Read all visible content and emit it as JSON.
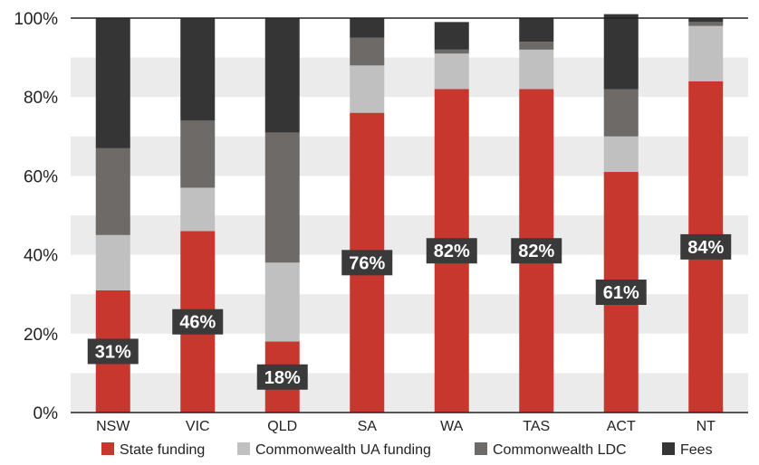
{
  "chart_data": {
    "type": "bar",
    "stacked": true,
    "percent_stacked": true,
    "categories": [
      "NSW",
      "VIC",
      "QLD",
      "SA",
      "WA",
      "TAS",
      "ACT",
      "NT"
    ],
    "series": [
      {
        "name": "State funding",
        "color": "#c8372d",
        "values": [
          31,
          46,
          18,
          76,
          82,
          82,
          61,
          84
        ]
      },
      {
        "name": "Commonwealth UA funding",
        "color": "#c0c0c0",
        "values": [
          14,
          11,
          20,
          12,
          9,
          10,
          9,
          14
        ]
      },
      {
        "name": "Commonwealth LDC",
        "color": "#6d6a67",
        "values": [
          22,
          17,
          33,
          7,
          1,
          2,
          12,
          1
        ]
      },
      {
        "name": "Fees",
        "color": "#353535",
        "values": [
          33,
          26,
          29,
          5,
          7,
          6,
          19,
          1
        ]
      }
    ],
    "data_labels": [
      "31%",
      "46%",
      "18%",
      "76%",
      "82%",
      "82%",
      "61%",
      "84%"
    ],
    "y_ticks": [
      "0%",
      "20%",
      "40%",
      "60%",
      "80%",
      "100%"
    ],
    "ylim": [
      0,
      100
    ],
    "grid": "alternating horizontal bands",
    "band_color": "#ebebeb",
    "label_box_color": "#3a3a3a",
    "legend_position": "bottom"
  }
}
